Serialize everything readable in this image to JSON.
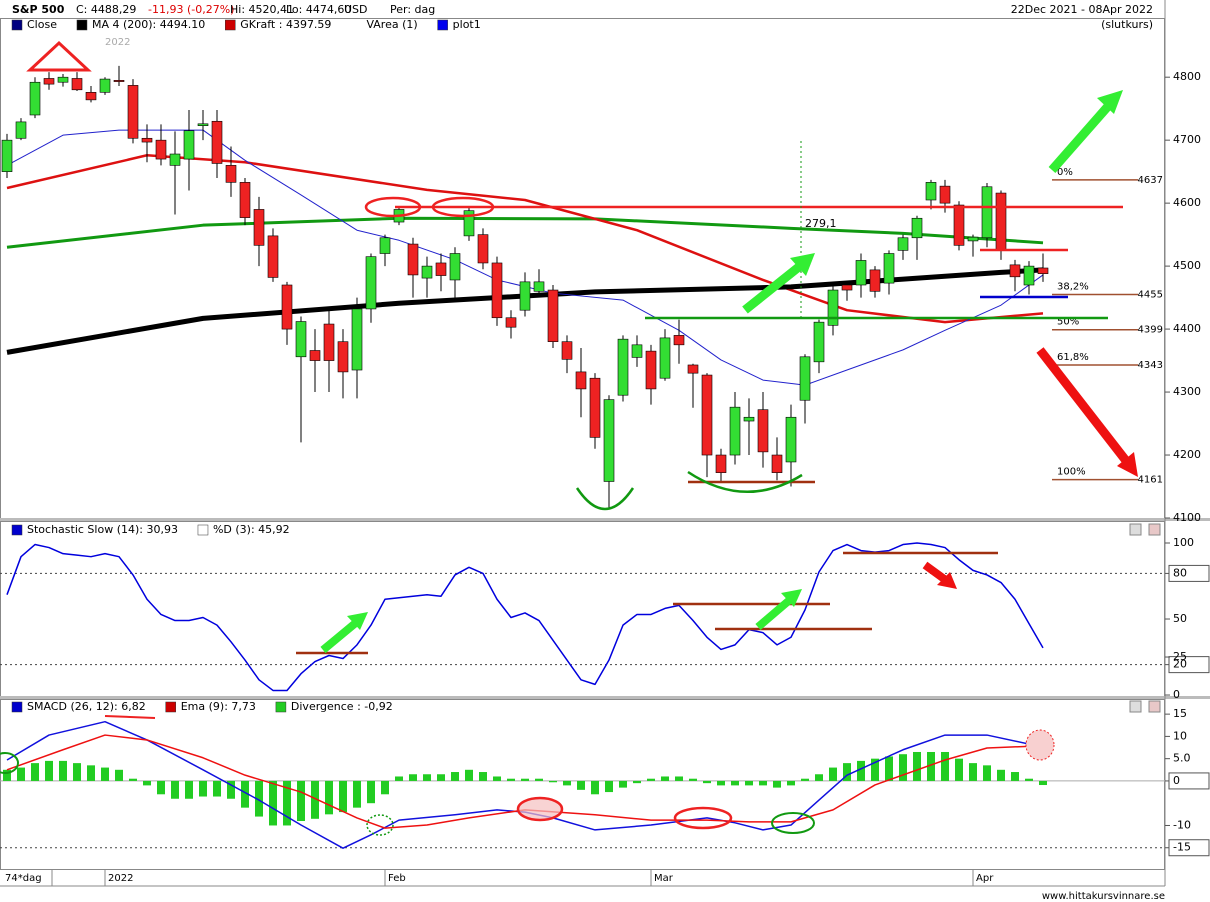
{
  "header": {
    "symbol": "S&P 500",
    "close": "C: 4488,29",
    "change": "-11,93 (-0,27%)",
    "high": "Hi: 4520,41",
    "low": "Lo: 4474,60",
    "currency": "USD",
    "period": "Per: dag",
    "range": "22Dec 2021 - 08Apr 2022",
    "price_type": "(slutkurs)",
    "year": "2022",
    "bars": "74*dag",
    "source": "www.hittakursvinnare.se"
  },
  "chart_data": [
    {
      "type": "candlestick",
      "categories": [
        null,
        null,
        null,
        null,
        null,
        null,
        null,
        "2022",
        null,
        null,
        null,
        null,
        null,
        null,
        null,
        null,
        null,
        null,
        null,
        null,
        null,
        null,
        null,
        null,
        null,
        null,
        null,
        "Feb",
        null,
        null,
        null,
        null,
        null,
        null,
        null,
        null,
        null,
        null,
        null,
        null,
        null,
        null,
        null,
        null,
        null,
        null,
        "Mar",
        null,
        null,
        null,
        null,
        null,
        null,
        null,
        null,
        null,
        null,
        null,
        null,
        null,
        null,
        null,
        null,
        null,
        null,
        null,
        null,
        null,
        null,
        "Apr",
        null,
        null,
        null,
        null,
        null
      ],
      "open": [
        4650,
        4703,
        4740,
        4798,
        4792,
        4798,
        4776,
        4776,
        4795,
        4787,
        4703,
        4700,
        4660,
        4670,
        4723,
        4730,
        4660,
        4633,
        4590,
        4548,
        4470,
        4356,
        4366,
        4408,
        4380,
        4335,
        4432,
        4520,
        4570,
        4535,
        4481,
        4505,
        4478,
        4548,
        4550,
        4505,
        4418,
        4430,
        4460,
        4462,
        4380,
        4332,
        4322,
        4158,
        4295,
        4355,
        4365,
        4322,
        4390,
        4343,
        4327,
        4200,
        4200,
        4254,
        4272,
        4200,
        4189,
        4287,
        4348,
        4406,
        4470,
        4470,
        4494,
        4473,
        4525,
        4545,
        4605,
        4627,
        4597,
        4540,
        4545,
        4616,
        4502,
        4470,
        4497
      ],
      "high": [
        4710,
        4735,
        4800,
        4808,
        4805,
        4808,
        4786,
        4800,
        4818,
        4797,
        4725,
        4725,
        4714,
        4748,
        4748,
        4748,
        4690,
        4640,
        4610,
        4560,
        4475,
        4420,
        4400,
        4430,
        4400,
        4450,
        4520,
        4550,
        4595,
        4545,
        4515,
        4520,
        4530,
        4595,
        4560,
        4515,
        4430,
        4490,
        4495,
        4470,
        4390,
        4370,
        4330,
        4295,
        4390,
        4390,
        4375,
        4400,
        4415,
        4345,
        4330,
        4210,
        4300,
        4290,
        4300,
        4228,
        4280,
        4360,
        4415,
        4470,
        4475,
        4520,
        4500,
        4525,
        4550,
        4580,
        4637,
        4637,
        4603,
        4550,
        4632,
        4620,
        4510,
        4508,
        4520
      ],
      "low": [
        4640,
        4700,
        4735,
        4780,
        4785,
        4778,
        4760,
        4772,
        4786,
        4695,
        4665,
        4660,
        4582,
        4620,
        4700,
        4640,
        4610,
        4565,
        4500,
        4475,
        4375,
        4220,
        4300,
        4300,
        4290,
        4290,
        4410,
        4500,
        4565,
        4450,
        4450,
        4460,
        4450,
        4540,
        4495,
        4405,
        4385,
        4420,
        4455,
        4370,
        4330,
        4260,
        4210,
        4115,
        4285,
        4340,
        4280,
        4318,
        4345,
        4275,
        4165,
        4157,
        4185,
        4200,
        4180,
        4160,
        4150,
        4250,
        4330,
        4390,
        4445,
        4450,
        4450,
        4455,
        4510,
        4510,
        4590,
        4585,
        4525,
        4515,
        4530,
        4510,
        4460,
        4455,
        4475
      ],
      "close": [
        4700,
        4729,
        4792,
        4789,
        4800,
        4780,
        4764,
        4797,
        4793,
        4703,
        4697,
        4670,
        4678,
        4715,
        4726,
        4663,
        4633,
        4577,
        4533,
        4482,
        4400,
        4412,
        4350,
        4350,
        4332,
        4432,
        4515,
        4545,
        4590,
        4486,
        4500,
        4485,
        4520,
        4588,
        4505,
        4418,
        4403,
        4475,
        4475,
        4380,
        4352,
        4305,
        4228,
        4288,
        4384,
        4375,
        4305,
        4386,
        4375,
        4330,
        4200,
        4172,
        4276,
        4260,
        4205,
        4172,
        4260,
        4356,
        4411,
        4462,
        4462,
        4509,
        4460,
        4520,
        4545,
        4576,
        4633,
        4600,
        4533,
        4546,
        4626,
        4525,
        4483,
        4500,
        4488
      ],
      "up_color": "#33dd33",
      "down_color": "#ee2222",
      "series": [
        {
          "color": "#119911",
          "line_width": 3,
          "x": [
            0,
            14,
            28,
            42,
            56,
            64,
            74
          ],
          "values": [
            4530,
            4565,
            4576,
            4575,
            4560,
            4552,
            4537
          ]
        },
        {
          "color": "#dd1111",
          "line_width": 2.5,
          "x": [
            0,
            10,
            17,
            30,
            37,
            45,
            54,
            60,
            67,
            74
          ],
          "values": [
            4624,
            4676,
            4665,
            4621,
            4605,
            4557,
            4478,
            4430,
            4411,
            4425
          ]
        },
        {
          "color": "#000000",
          "line_width": 5,
          "x": [
            0,
            14,
            28,
            42,
            56,
            71,
            74
          ],
          "values": [
            4363,
            4417,
            4441,
            4459,
            4467,
            4490,
            4494
          ]
        },
        {
          "color": "#2222cc",
          "line_width": 1,
          "x": [
            0,
            4,
            8,
            14,
            17,
            21,
            25,
            28,
            32,
            35,
            39,
            44,
            48,
            51,
            54,
            57,
            60,
            64,
            67,
            71,
            74
          ],
          "values": [
            4660,
            4708,
            4716,
            4716,
            4668,
            4613,
            4557,
            4541,
            4510,
            4478,
            4457,
            4446,
            4398,
            4351,
            4319,
            4311,
            4335,
            4367,
            4398,
            4438,
            4486
          ]
        }
      ],
      "legend": [
        {
          "label": "Close",
          "color": "#000080"
        },
        {
          "label": "MA 4 (200): 4494.10",
          "color": "#000000"
        },
        {
          "label": "GKraft : 4397.59",
          "color": "#cc0000"
        },
        {
          "label": "VArea (1)",
          "color": null
        },
        {
          "label": "plot1",
          "color": "#0000ee"
        }
      ],
      "fib_levels": [
        {
          "value": 4637,
          "label": "0%"
        },
        {
          "value": 4455,
          "label": "38,2%"
        },
        {
          "value": 4399,
          "label": "50%"
        },
        {
          "value": 4343,
          "label": "61,8%"
        },
        {
          "value": 4161,
          "label": "100%"
        }
      ],
      "annotation": "279,1",
      "ylim": [
        4100,
        4894
      ],
      "yticks": [
        4100,
        4200,
        4300,
        4400,
        4500,
        4600,
        4700,
        4800
      ]
    },
    {
      "type": "line",
      "series": [
        {
          "color": "#0000dd",
          "values": [
            66,
            91,
            99,
            97,
            93,
            92,
            91,
            93,
            91,
            79,
            63,
            53,
            49,
            49,
            51,
            46,
            35,
            23,
            10,
            3,
            3,
            14,
            22,
            26,
            24,
            33,
            46,
            63,
            64,
            65,
            66,
            65,
            79,
            84,
            80,
            63,
            51,
            54,
            49,
            36,
            23,
            10,
            7,
            23,
            46,
            53,
            53,
            57,
            59,
            49,
            38,
            30,
            33,
            43,
            41,
            33,
            38,
            56,
            81,
            95,
            99,
            95,
            94,
            95,
            99,
            100,
            99,
            97,
            89,
            82,
            79,
            74,
            63,
            47,
            31
          ]
        }
      ],
      "legend": [
        {
          "label": "Stochastic Slow (14): 30,93",
          "color": "#0000cc"
        },
        {
          "label": "%D (3): 45,92",
          "color": "#ffffff"
        }
      ],
      "reference_lines": [
        20,
        80
      ],
      "ylim": [
        -1.3,
        107.9
      ],
      "yticks": [
        0,
        20,
        25,
        50,
        80,
        100
      ]
    },
    {
      "type": "combo",
      "series": [
        {
          "kind": "bar",
          "color": "#22cc22",
          "values": [
            2.5,
            3,
            4,
            4.5,
            4.5,
            4,
            3.5,
            3,
            2.5,
            0.5,
            -1,
            -3,
            -4,
            -4,
            -3.5,
            -3.5,
            -4,
            -6,
            -8,
            -10,
            -10,
            -9,
            -8.5,
            -7.5,
            -7,
            -6,
            -5,
            -3,
            1,
            1.5,
            1.5,
            1.5,
            2,
            2.5,
            2,
            1,
            0.5,
            0.5,
            0.5,
            -0.3,
            -1,
            -2,
            -3,
            -2.5,
            -1.5,
            -0.5,
            0.5,
            1,
            1,
            0.5,
            -0.5,
            -1,
            -1,
            -1,
            -1,
            -1.5,
            -1,
            0.5,
            1.5,
            3,
            4,
            4.5,
            5,
            5.5,
            6,
            6.5,
            6.5,
            6.5,
            5,
            4,
            3.5,
            2.5,
            2,
            0.5,
            -0.92
          ]
        },
        {
          "kind": "line",
          "color": "#1111dd",
          "x": [
            0,
            3,
            7,
            10,
            14,
            18,
            21,
            24,
            26,
            28,
            32,
            35,
            37,
            39,
            42,
            46,
            50,
            52,
            54,
            56,
            58,
            60,
            64,
            67,
            70,
            74
          ],
          "values": [
            4.7,
            10.3,
            13.3,
            9.2,
            2.5,
            -4.3,
            -9.9,
            -15.1,
            -12.1,
            -8.8,
            -7.6,
            -6.5,
            -7,
            -8.3,
            -11,
            -9.9,
            -8.3,
            -9.4,
            -11,
            -9.9,
            -4.3,
            1.3,
            7,
            10.3,
            10.3,
            7.6
          ]
        },
        {
          "kind": "line",
          "color": "#ee1111",
          "x": [
            0,
            4,
            7,
            10,
            14,
            17,
            21,
            25,
            27,
            30,
            33,
            37,
            42,
            46,
            50,
            53,
            56,
            59,
            62,
            67,
            70,
            74
          ],
          "values": [
            2.5,
            7,
            10.3,
            9.2,
            5.2,
            1.3,
            -2.5,
            -8.3,
            -10.6,
            -9.9,
            -8.3,
            -6.5,
            -7.6,
            -8.8,
            -8.8,
            -9.2,
            -9.2,
            -6.5,
            -0.9,
            4.7,
            7.4,
            7.9
          ]
        }
      ],
      "legend": [
        {
          "label": "SMACD (26, 12): 6,82",
          "color": "#0000cc"
        },
        {
          "label": "Ema (9): 7,73",
          "color": "#cc0000"
        },
        {
          "label": "Divergence : -0,92",
          "color": "#22cc22"
        }
      ],
      "reference_lines": [
        0,
        -15
      ],
      "ylim": [
        -20,
        17.5
      ],
      "yticks": [
        -15,
        -10,
        0,
        {
          "value": 5,
          "label": "5.0"
        },
        10,
        15
      ]
    }
  ]
}
